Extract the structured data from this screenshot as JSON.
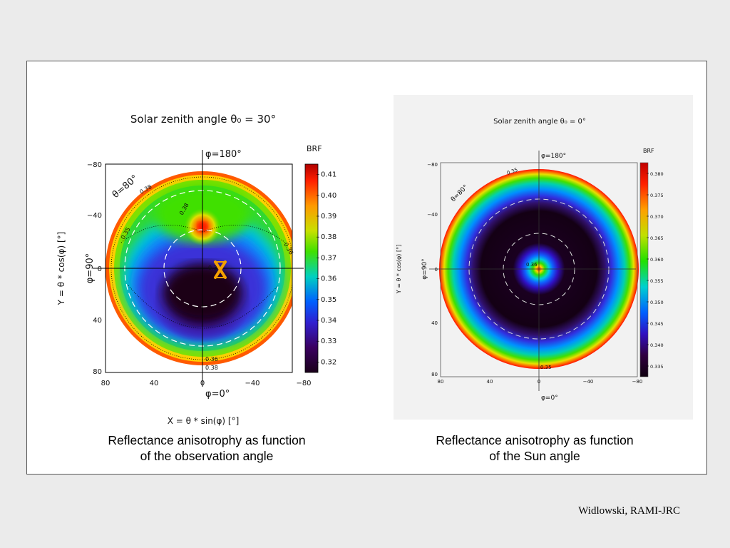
{
  "colors": {
    "page_bg": "#ebebeb",
    "panel_bg": "#ffffff",
    "right_plot_bg": "#f2f2f2",
    "sun_marker": "#f5a100",
    "colorbar_top": "#b00000",
    "colorbar_bottom": "#1a001a"
  },
  "chart_data": [
    {
      "type": "heatmap",
      "subtype": "polar-brf",
      "title": "Solar zenith angle θ₀ = 30°",
      "xlabel": "X = θ * sin(φ) [°]",
      "ylabel": "Y = θ * cos(φ) [°]",
      "xlim": [
        80,
        -80
      ],
      "ylim": [
        -80,
        80
      ],
      "x_ticks": [
        "80",
        "40",
        "0",
        "−40",
        "−80"
      ],
      "y_ticks": [
        "−80",
        "−40",
        "0",
        "40",
        "80"
      ],
      "phi_top_label": "φ=180°",
      "phi_bottom_label": "φ=0°",
      "phi_left_label": "φ=90°",
      "theta_label": "θ=80°",
      "colorbar_label": "BRF",
      "colorbar_ticks": [
        "0.41",
        "0.40",
        "0.39",
        "0.38",
        "0.37",
        "0.36",
        "0.35",
        "0.34",
        "0.33",
        "0.32"
      ],
      "contour_labels": [
        "0.38",
        "0.38",
        "0.35",
        "0.36",
        "0.36",
        "0.36",
        "0.38"
      ],
      "sun_marker": {
        "x": -20,
        "y": 0
      },
      "hotspot": {
        "x": 0,
        "y": -30,
        "value": 0.41
      },
      "value_range": [
        0.32,
        0.41
      ],
      "caption_line1": "Reflectance anisotrophy as function",
      "caption_line2": "of the observation angle"
    },
    {
      "type": "heatmap",
      "subtype": "polar-brf",
      "title": "Solar zenith angle θ₀ = 0°",
      "xlabel": "",
      "ylabel": "Y = θ * cos(φ) [°]",
      "xlim": [
        80,
        -80
      ],
      "ylim": [
        -80,
        80
      ],
      "x_ticks": [
        "80",
        "40",
        "0",
        "−40",
        "−80"
      ],
      "y_ticks": [
        "−80",
        "−40",
        "0",
        "40",
        "80"
      ],
      "phi_top_label": "φ=180°",
      "phi_bottom_label": "φ=0°",
      "phi_left_label": "φ=90°",
      "theta_label": "θ=80°",
      "colorbar_label": "BRF",
      "colorbar_ticks": [
        "0.380",
        "0.375",
        "0.370",
        "0.365",
        "0.360",
        "0.355",
        "0.350",
        "0.345",
        "0.340",
        "0.335"
      ],
      "contour_labels": [
        "0.35",
        "0.36",
        "0.35"
      ],
      "hotspot": {
        "x": 0,
        "y": 0,
        "value": 0.38
      },
      "value_range": [
        0.333,
        0.382
      ],
      "caption_line1": "Reflectance anisotrophy as function",
      "caption_line2": "of the Sun angle"
    }
  ],
  "credit": "Widlowski, RAMI-JRC"
}
